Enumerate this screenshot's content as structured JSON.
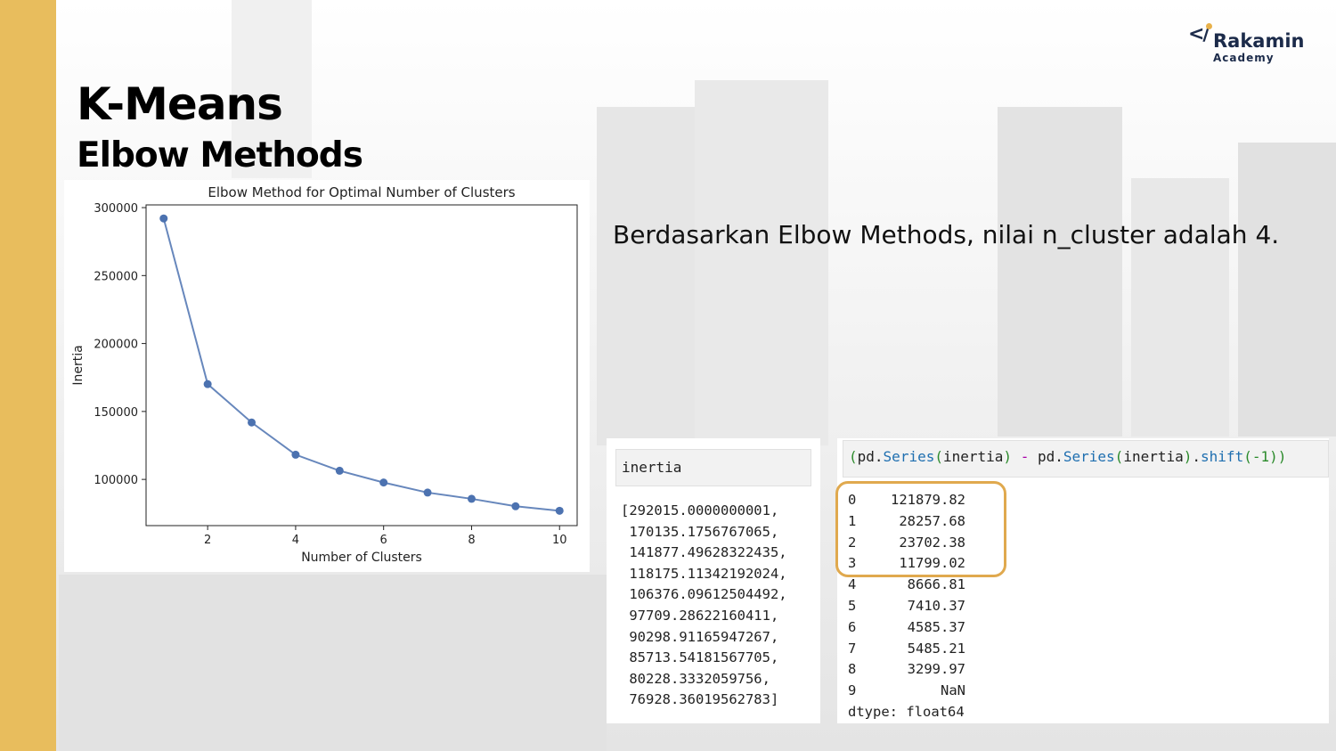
{
  "slide": {
    "title": "K-Means",
    "subtitle": "Elbow Methods",
    "conclusion": "Berdasarkan Elbow Methods, nilai n_cluster adalah 4.",
    "accent_color": "#e8bd5d",
    "highlight_color": "#e0a94e"
  },
  "logo": {
    "mark": "</",
    "name": "Rakamin",
    "sub": "Academy"
  },
  "chart_data": {
    "type": "line",
    "title": "Elbow Method for Optimal Number of Clusters",
    "xlabel": "Number of Clusters",
    "ylabel": "Inertia",
    "x": [
      1,
      2,
      3,
      4,
      5,
      6,
      7,
      8,
      9,
      10
    ],
    "series": [
      {
        "values": [
          292015.0,
          170135.18,
          141877.5,
          118175.11,
          106376.1,
          97709.29,
          90298.91,
          85713.54,
          80228.33,
          76928.36
        ],
        "color": "#4c72b0"
      }
    ],
    "xticks": [
      "2",
      "4",
      "6",
      "8",
      "10"
    ],
    "yticks": [
      "100000",
      "150000",
      "200000",
      "250000",
      "300000"
    ],
    "xlim": [
      0.6,
      10.4
    ],
    "ylim": [
      66000,
      302000
    ],
    "grid": false
  },
  "inertia_cell": {
    "header": "inertia",
    "output": [
      "[292015.0000000001,",
      " 170135.1756767065,",
      " 141877.49628322435,",
      " 118175.11342192024,",
      " 106376.09612504492,",
      " 97709.28622160411,",
      " 90298.91165947267,",
      " 85713.54181567705,",
      " 80228.3332059756,",
      " 76928.36019562783]"
    ]
  },
  "diff_cell": {
    "code": "(pd.Series(inertia) - pd.Series(inertia).shift(-1))",
    "rows": [
      {
        "idx": "0",
        "val": "121879.82"
      },
      {
        "idx": "1",
        "val": "28257.68"
      },
      {
        "idx": "2",
        "val": "23702.38"
      },
      {
        "idx": "3",
        "val": "11799.02"
      },
      {
        "idx": "4",
        "val": "8666.81"
      },
      {
        "idx": "5",
        "val": "7410.37"
      },
      {
        "idx": "6",
        "val": "4585.37"
      },
      {
        "idx": "7",
        "val": "5485.21"
      },
      {
        "idx": "8",
        "val": "3299.97"
      },
      {
        "idx": "9",
        "val": "NaN"
      }
    ],
    "dtype": "dtype: float64"
  }
}
